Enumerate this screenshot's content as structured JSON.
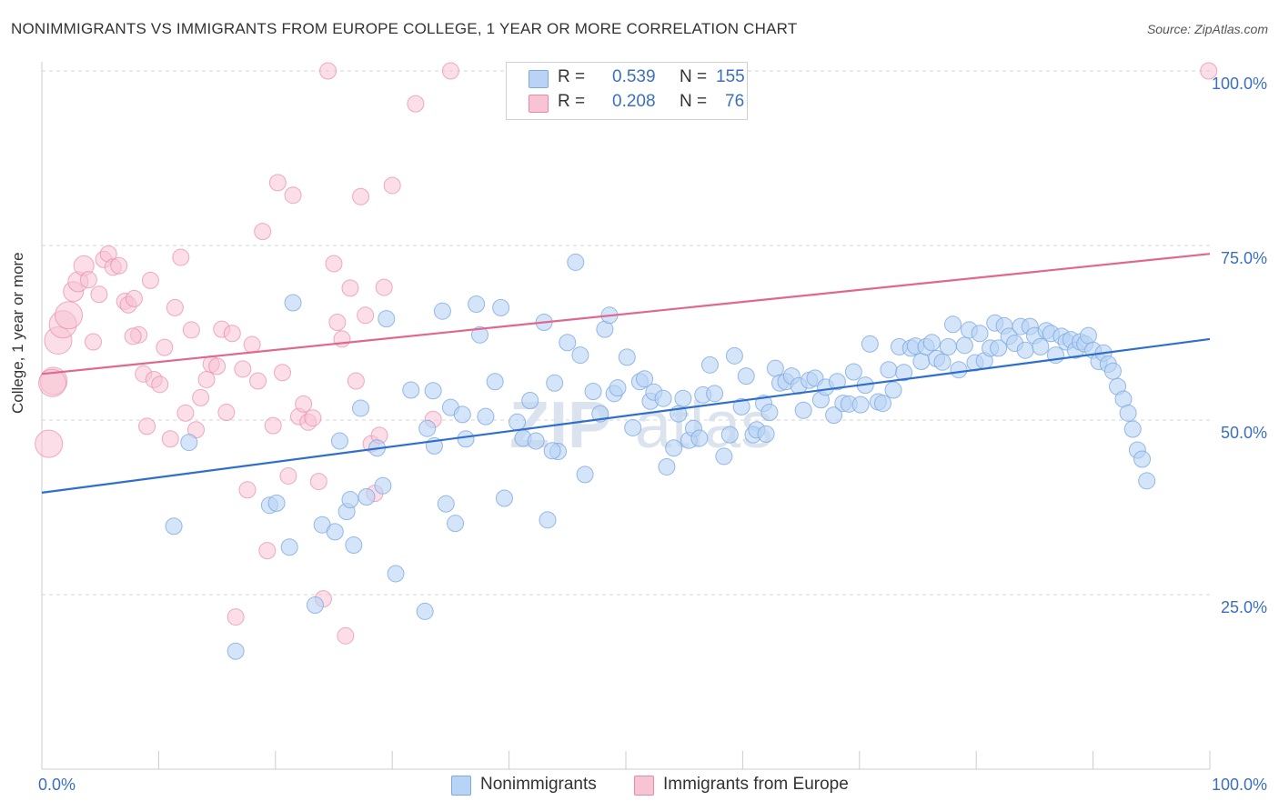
{
  "header": {
    "title": "NONIMMIGRANTS VS IMMIGRANTS FROM EUROPE COLLEGE, 1 YEAR OR MORE CORRELATION CHART",
    "source": "Source: ZipAtlas.com"
  },
  "stats_legend": {
    "blue": {
      "r_label": "R =",
      "r_value": "0.539",
      "n_label": "N =",
      "n_value": "155"
    },
    "pink": {
      "r_label": "R =",
      "r_value": "0.208",
      "n_label": "N =",
      "n_value": "76"
    }
  },
  "watermark": {
    "zip": "ZIP",
    "atlas": "atlas"
  },
  "colors": {
    "blue_fill": "#b8d3f5",
    "blue_stroke": "#7ea9de",
    "blue_line": "#2f6fcc",
    "pink_fill": "#f8c3d3",
    "pink_stroke": "#e88aa9",
    "pink_line": "#e0678f",
    "tick_text": "#3b6fc2"
  },
  "chart_data": {
    "type": "scatter",
    "title": "NONIMMIGRANTS VS IMMIGRANTS FROM EUROPE COLLEGE, 1 YEAR OR MORE CORRELATION CHART",
    "xlabel": "",
    "ylabel": "College, 1 year or more",
    "xlim": [
      0,
      100
    ],
    "ylim": [
      0,
      100
    ],
    "x_tick_labels": [
      "0.0%",
      "100.0%"
    ],
    "y_ticks": [
      {
        "value": 25,
        "label": "25.0%"
      },
      {
        "value": 50,
        "label": "50.0%"
      },
      {
        "value": 75,
        "label": "75.0%"
      },
      {
        "value": 100,
        "label": "100.0%"
      }
    ],
    "grid": true,
    "legend_position": "bottom-center",
    "series": [
      {
        "name": "Nonimmigrants",
        "color": "#b8d3f5",
        "trend": {
          "x": [
            0,
            100
          ],
          "y": [
            39.6,
            61.6
          ]
        },
        "points": [
          [
            11.3,
            34.8
          ],
          [
            12.6,
            46.8
          ],
          [
            16.6,
            16.9
          ],
          [
            19.5,
            37.8
          ],
          [
            21.2,
            31.8
          ],
          [
            21.5,
            66.8
          ],
          [
            24.0,
            35.0
          ],
          [
            23.4,
            23.5
          ],
          [
            25.1,
            34.0
          ],
          [
            25.5,
            47.0
          ],
          [
            26.1,
            36.9
          ],
          [
            26.4,
            38.6
          ],
          [
            26.7,
            32.1
          ],
          [
            27.3,
            51.7
          ],
          [
            27.8,
            39.0
          ],
          [
            28.7,
            46.0
          ],
          [
            29.2,
            40.6
          ],
          [
            29.5,
            64.5
          ],
          [
            30.3,
            28.0
          ],
          [
            31.6,
            54.3
          ],
          [
            32.8,
            22.6
          ],
          [
            33.0,
            48.8
          ],
          [
            33.6,
            46.3
          ],
          [
            34.3,
            65.6
          ],
          [
            34.6,
            38.0
          ],
          [
            35.0,
            51.8
          ],
          [
            35.4,
            35.2
          ],
          [
            36.0,
            50.8
          ],
          [
            36.3,
            47.3
          ],
          [
            37.2,
            66.6
          ],
          [
            37.5,
            62.2
          ],
          [
            38.0,
            50.5
          ],
          [
            38.8,
            55.5
          ],
          [
            39.3,
            66.1
          ],
          [
            39.6,
            38.8
          ],
          [
            40.7,
            49.7
          ],
          [
            41.2,
            47.4
          ],
          [
            41.8,
            52.8
          ],
          [
            42.3,
            47.0
          ],
          [
            43.0,
            64.0
          ],
          [
            43.3,
            35.7
          ],
          [
            43.9,
            55.3
          ],
          [
            44.2,
            45.5
          ],
          [
            45.0,
            61.1
          ],
          [
            45.7,
            72.6
          ],
          [
            46.1,
            59.3
          ],
          [
            46.5,
            42.2
          ],
          [
            47.2,
            54.1
          ],
          [
            47.8,
            50.9
          ],
          [
            48.2,
            63.0
          ],
          [
            48.6,
            65.0
          ],
          [
            49.0,
            53.8
          ],
          [
            49.3,
            54.6
          ],
          [
            50.1,
            59.0
          ],
          [
            50.6,
            48.9
          ],
          [
            51.2,
            55.5
          ],
          [
            51.6,
            55.9
          ],
          [
            52.1,
            52.7
          ],
          [
            52.4,
            54.0
          ],
          [
            53.2,
            53.1
          ],
          [
            53.5,
            43.3
          ],
          [
            54.1,
            46.0
          ],
          [
            54.5,
            50.9
          ],
          [
            54.9,
            53.1
          ],
          [
            55.4,
            47.1
          ],
          [
            55.8,
            48.8
          ],
          [
            56.3,
            47.4
          ],
          [
            56.6,
            53.6
          ],
          [
            57.2,
            57.9
          ],
          [
            57.6,
            53.8
          ],
          [
            58.4,
            44.8
          ],
          [
            58.9,
            47.9
          ],
          [
            59.3,
            59.2
          ],
          [
            59.9,
            51.9
          ],
          [
            60.3,
            56.3
          ],
          [
            60.9,
            47.9
          ],
          [
            61.2,
            48.6
          ],
          [
            61.8,
            52.4
          ],
          [
            62.3,
            51.1
          ],
          [
            62.8,
            57.4
          ],
          [
            63.2,
            55.3
          ],
          [
            63.7,
            55.5
          ],
          [
            64.2,
            56.3
          ],
          [
            64.8,
            54.9
          ],
          [
            65.2,
            51.4
          ],
          [
            65.7,
            55.7
          ],
          [
            66.2,
            56.0
          ],
          [
            66.7,
            52.9
          ],
          [
            67.1,
            54.7
          ],
          [
            67.8,
            50.7
          ],
          [
            68.1,
            55.5
          ],
          [
            68.6,
            52.4
          ],
          [
            69.1,
            52.3
          ],
          [
            69.5,
            56.9
          ],
          [
            70.1,
            52.2
          ],
          [
            70.5,
            55.0
          ],
          [
            70.9,
            60.9
          ],
          [
            71.6,
            52.6
          ],
          [
            72.0,
            52.4
          ],
          [
            72.5,
            57.2
          ],
          [
            72.9,
            54.3
          ],
          [
            73.4,
            60.5
          ],
          [
            73.8,
            56.8
          ],
          [
            74.4,
            60.3
          ],
          [
            74.8,
            60.6
          ],
          [
            75.3,
            58.4
          ],
          [
            75.7,
            60.5
          ],
          [
            76.2,
            61.1
          ],
          [
            76.6,
            58.8
          ],
          [
            77.1,
            58.3
          ],
          [
            77.6,
            60.5
          ],
          [
            78.0,
            63.7
          ],
          [
            78.5,
            57.2
          ],
          [
            79.0,
            60.7
          ],
          [
            79.4,
            62.9
          ],
          [
            79.9,
            58.2
          ],
          [
            80.3,
            62.4
          ],
          [
            80.7,
            58.5
          ],
          [
            81.2,
            60.3
          ],
          [
            81.6,
            63.9
          ],
          [
            81.9,
            60.3
          ],
          [
            82.4,
            63.5
          ],
          [
            82.8,
            62.0
          ],
          [
            83.3,
            61.0
          ],
          [
            83.8,
            63.4
          ],
          [
            84.2,
            60.0
          ],
          [
            84.6,
            63.4
          ],
          [
            85.0,
            62.1
          ],
          [
            85.5,
            60.5
          ],
          [
            86.0,
            62.8
          ],
          [
            86.4,
            62.4
          ],
          [
            86.8,
            59.3
          ],
          [
            87.3,
            62.0
          ],
          [
            87.7,
            61.2
          ],
          [
            88.1,
            61.5
          ],
          [
            88.5,
            60.0
          ],
          [
            88.9,
            61.2
          ],
          [
            89.3,
            60.9
          ],
          [
            89.6,
            62.1
          ],
          [
            90.0,
            60.0
          ],
          [
            90.5,
            58.4
          ],
          [
            90.9,
            59.6
          ],
          [
            91.3,
            58.0
          ],
          [
            91.7,
            57.0
          ],
          [
            92.1,
            54.8
          ],
          [
            92.6,
            53.0
          ],
          [
            93.0,
            51.0
          ],
          [
            93.4,
            48.7
          ],
          [
            93.8,
            45.7
          ],
          [
            94.2,
            44.4
          ],
          [
            94.6,
            41.3
          ],
          [
            43.7,
            45.6
          ],
          [
            62.0,
            48.0
          ],
          [
            33.5,
            54.2
          ],
          [
            20.1,
            38.1
          ]
        ]
      },
      {
        "name": "Immigrants from Europe",
        "color": "#f8c3d3",
        "trend": {
          "x": [
            0,
            100
          ],
          "y": [
            56.6,
            73.8
          ]
        },
        "points": [
          [
            0.6,
            46.6
          ],
          [
            1.0,
            55.6
          ],
          [
            1.4,
            61.4
          ],
          [
            1.8,
            63.7
          ],
          [
            2.3,
            65.0
          ],
          [
            2.7,
            68.4
          ],
          [
            3.1,
            69.8
          ],
          [
            3.6,
            72.1
          ],
          [
            4.0,
            70.1
          ],
          [
            4.4,
            61.2
          ],
          [
            4.9,
            68.0
          ],
          [
            5.3,
            73.0
          ],
          [
            5.7,
            73.8
          ],
          [
            6.1,
            71.9
          ],
          [
            6.6,
            72.1
          ],
          [
            7.1,
            67.0
          ],
          [
            7.4,
            66.5
          ],
          [
            7.9,
            67.4
          ],
          [
            8.3,
            62.2
          ],
          [
            8.7,
            56.6
          ],
          [
            9.3,
            70.0
          ],
          [
            9.6,
            55.8
          ],
          [
            10.1,
            55.1
          ],
          [
            10.5,
            60.4
          ],
          [
            11.0,
            47.3
          ],
          [
            11.4,
            66.1
          ],
          [
            11.9,
            73.3
          ],
          [
            12.3,
            51.0
          ],
          [
            12.8,
            62.9
          ],
          [
            13.2,
            48.6
          ],
          [
            13.6,
            53.2
          ],
          [
            14.1,
            55.8
          ],
          [
            14.5,
            58.0
          ],
          [
            15.0,
            57.7
          ],
          [
            15.4,
            63.0
          ],
          [
            15.8,
            51.1
          ],
          [
            16.3,
            62.4
          ],
          [
            16.6,
            21.8
          ],
          [
            17.2,
            57.3
          ],
          [
            17.6,
            40.0
          ],
          [
            18.0,
            60.8
          ],
          [
            18.5,
            55.6
          ],
          [
            18.9,
            77.0
          ],
          [
            19.3,
            31.3
          ],
          [
            19.8,
            49.2
          ],
          [
            20.2,
            84.0
          ],
          [
            20.6,
            56.8
          ],
          [
            21.1,
            42.0
          ],
          [
            21.5,
            82.2
          ],
          [
            22.0,
            50.5
          ],
          [
            22.4,
            52.3
          ],
          [
            22.8,
            49.7
          ],
          [
            23.2,
            50.3
          ],
          [
            23.7,
            41.2
          ],
          [
            24.1,
            24.4
          ],
          [
            24.5,
            100
          ],
          [
            25.0,
            72.4
          ],
          [
            25.3,
            64.0
          ],
          [
            25.7,
            61.6
          ],
          [
            26.0,
            19.1
          ],
          [
            26.4,
            68.9
          ],
          [
            26.9,
            55.6
          ],
          [
            27.3,
            82.0
          ],
          [
            27.7,
            65.0
          ],
          [
            28.2,
            46.6
          ],
          [
            28.5,
            39.5
          ],
          [
            28.9,
            47.8
          ],
          [
            29.3,
            69.0
          ],
          [
            30.0,
            83.6
          ],
          [
            32.0,
            95.3
          ],
          [
            33.5,
            50.1
          ],
          [
            35.0,
            100
          ],
          [
            99.9,
            100
          ],
          [
            9.0,
            49.1
          ],
          [
            7.8,
            62.0
          ],
          [
            0.9,
            55.3
          ]
        ]
      }
    ]
  }
}
